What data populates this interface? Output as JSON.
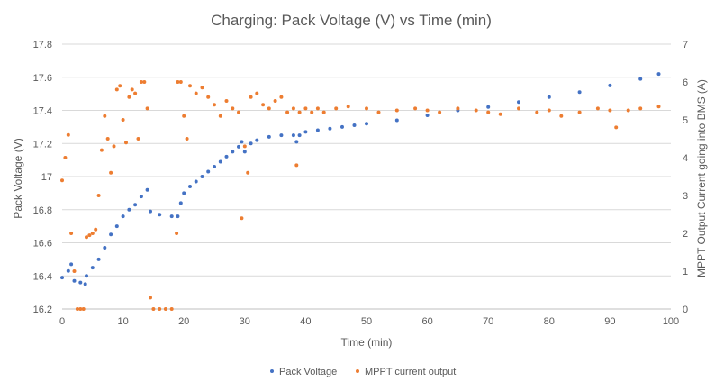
{
  "chart_data": {
    "type": "scatter",
    "title": "Charging: Pack Voltage (V) vs Time (min)",
    "xlabel": "Time (min)",
    "ylabel": "Pack Voltage (V)",
    "y2label": "MPPT Output Current going into BMS (A)",
    "xlim": [
      0,
      100
    ],
    "ylim": [
      16.2,
      17.8
    ],
    "y2lim": [
      0,
      7
    ],
    "x_ticks": [
      "0",
      "10",
      "20",
      "30",
      "40",
      "50",
      "60",
      "70",
      "80",
      "90",
      "100"
    ],
    "y_ticks": [
      "16.2",
      "16.4",
      "16.6",
      "16.8",
      "17",
      "17.2",
      "17.4",
      "17.6",
      "17.8"
    ],
    "y2_ticks": [
      "0",
      "1",
      "2",
      "3",
      "4",
      "5",
      "6",
      "7"
    ],
    "grid": "horizontal",
    "legend_position": "bottom",
    "series": [
      {
        "name": "Pack Voltage",
        "axis": "left",
        "color": "#4472C4",
        "x": [
          0,
          1,
          1.5,
          2,
          3,
          3.8,
          4,
          5,
          6,
          7,
          8,
          9,
          10,
          11,
          12,
          13,
          14,
          14.5,
          16,
          18,
          19,
          19.5,
          20,
          21,
          22,
          23,
          24,
          25,
          26,
          27,
          28,
          29,
          29.5,
          30,
          31,
          32,
          34,
          36,
          38,
          38.5,
          39,
          40,
          42,
          44,
          46,
          48,
          50,
          55,
          60,
          65,
          70,
          75,
          80,
          85,
          90,
          95,
          98
        ],
        "y": [
          16.39,
          16.43,
          16.47,
          16.37,
          16.36,
          16.35,
          16.4,
          16.45,
          16.5,
          16.57,
          16.65,
          16.7,
          16.76,
          16.8,
          16.83,
          16.88,
          16.92,
          16.79,
          16.77,
          16.76,
          16.76,
          16.84,
          16.9,
          16.94,
          16.97,
          17.0,
          17.03,
          17.06,
          17.09,
          17.12,
          17.15,
          17.18,
          17.21,
          17.15,
          17.2,
          17.22,
          17.24,
          17.25,
          17.25,
          17.21,
          17.25,
          17.27,
          17.28,
          17.29,
          17.3,
          17.31,
          17.32,
          17.34,
          17.37,
          17.4,
          17.42,
          17.45,
          17.48,
          17.51,
          17.55,
          17.59,
          17.62
        ]
      },
      {
        "name": "MPPT current output",
        "axis": "right",
        "color": "#ED7D31",
        "x": [
          0,
          0.5,
          1,
          1.5,
          2,
          2.5,
          3,
          3.5,
          4,
          4.5,
          5,
          5.5,
          6,
          6.5,
          7,
          7.5,
          8,
          8.5,
          9,
          9.5,
          10,
          10.5,
          11,
          11.5,
          12,
          12.5,
          13,
          13.5,
          14,
          14.5,
          15,
          16,
          17,
          18,
          18.8,
          19,
          19.5,
          20,
          20.5,
          21,
          22,
          23,
          24,
          25,
          26,
          27,
          28,
          29,
          29.5,
          30,
          30.5,
          31,
          32,
          33,
          34,
          35,
          36,
          37,
          38,
          38.5,
          39,
          40,
          41,
          42,
          43,
          45,
          47,
          50,
          52,
          55,
          58,
          60,
          62,
          65,
          68,
          70,
          72,
          75,
          78,
          80,
          82,
          85,
          88,
          90,
          91,
          93,
          95,
          98
        ],
        "y": [
          3.4,
          4.0,
          4.6,
          2.0,
          1.0,
          0.0,
          0.0,
          0.0,
          1.9,
          1.95,
          2.0,
          2.1,
          3.0,
          4.2,
          5.1,
          4.5,
          3.6,
          4.3,
          5.8,
          5.9,
          5.0,
          4.4,
          5.6,
          5.8,
          5.7,
          4.5,
          6.0,
          6.0,
          5.3,
          0.3,
          0.0,
          0.0,
          0.0,
          0.0,
          2.0,
          6.0,
          6.0,
          5.1,
          4.5,
          5.9,
          5.7,
          5.85,
          5.6,
          5.4,
          5.1,
          5.5,
          5.3,
          5.2,
          2.4,
          4.3,
          3.6,
          5.6,
          5.7,
          5.4,
          5.3,
          5.5,
          5.6,
          5.2,
          5.3,
          3.8,
          5.2,
          5.3,
          5.2,
          5.3,
          5.2,
          5.3,
          5.35,
          5.3,
          5.2,
          5.25,
          5.3,
          5.25,
          5.2,
          5.3,
          5.25,
          5.2,
          5.15,
          5.3,
          5.2,
          5.25,
          5.1,
          5.2,
          5.3,
          5.25,
          4.8,
          5.25,
          5.3,
          5.35
        ]
      }
    ]
  }
}
